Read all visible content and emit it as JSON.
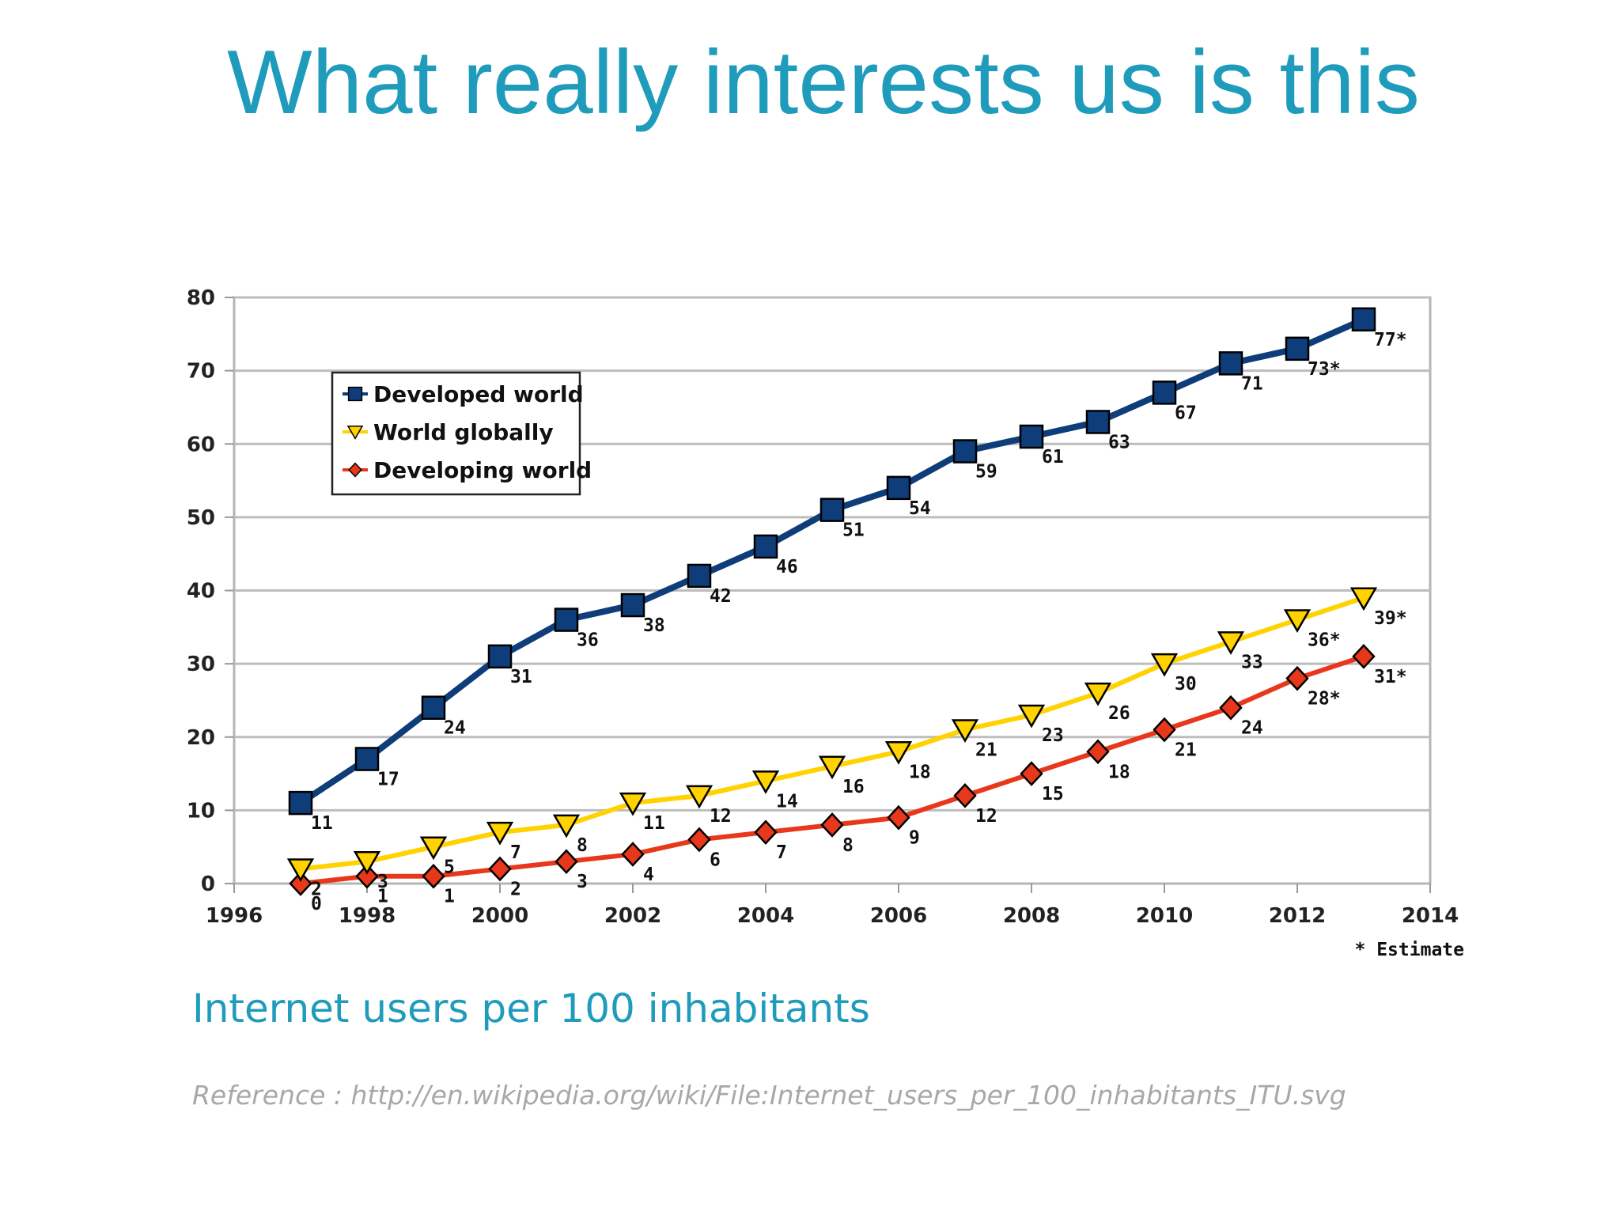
{
  "slide": {
    "title": "What really interests us is this",
    "caption": "Internet users per 100 inhabitants",
    "reference": "Reference : http://en.wikipedia.org/wiki/File:Internet_users_per_100_inhabitants_ITU.svg"
  },
  "chart_data": {
    "type": "line",
    "xlim": [
      1996,
      2014
    ],
    "ylim": [
      0,
      80
    ],
    "x_ticks": [
      "1996",
      "1998",
      "2000",
      "2002",
      "2004",
      "2006",
      "2008",
      "2010",
      "2012",
      "2014"
    ],
    "y_ticks": [
      "0",
      "10",
      "20",
      "30",
      "40",
      "50",
      "60",
      "70",
      "80"
    ],
    "grid": true,
    "legend_position": "top-left",
    "note": "* Estimate",
    "x": [
      1997,
      1998,
      1999,
      2000,
      2001,
      2002,
      2003,
      2004,
      2005,
      2006,
      2007,
      2008,
      2009,
      2010,
      2011,
      2012,
      2013
    ],
    "series": [
      {
        "name": "Developed world",
        "marker": "square",
        "color": "#0e3d7a",
        "values": [
          11,
          17,
          24,
          31,
          36,
          38,
          42,
          46,
          51,
          54,
          59,
          61,
          63,
          67,
          71,
          73,
          77
        ],
        "labels": [
          "11",
          "17",
          "24",
          "31",
          "36",
          "38",
          "42",
          "46",
          "51",
          "54",
          "59",
          "61",
          "63",
          "67",
          "71",
          "73*",
          "77*"
        ]
      },
      {
        "name": "World globally",
        "marker": "triangle-down",
        "color": "#ffd200",
        "values": [
          2,
          3,
          5,
          7,
          8,
          11,
          12,
          14,
          16,
          18,
          21,
          23,
          26,
          30,
          33,
          36,
          39
        ],
        "labels": [
          "2",
          "3",
          "5",
          "7",
          "8",
          "11",
          "12",
          "14",
          "16",
          "18",
          "21",
          "23",
          "26",
          "30",
          "33",
          "36*",
          "39*"
        ]
      },
      {
        "name": "Developing world",
        "marker": "diamond",
        "color": "#e8381b",
        "values": [
          0,
          1,
          1,
          2,
          3,
          4,
          6,
          7,
          8,
          9,
          12,
          15,
          18,
          21,
          24,
          28,
          31
        ],
        "labels": [
          "0",
          "1",
          "1",
          "2",
          "3",
          "4",
          "6",
          "7",
          "8",
          "9",
          "12",
          "15",
          "18",
          "21",
          "24",
          "28*",
          "31*"
        ]
      }
    ]
  }
}
